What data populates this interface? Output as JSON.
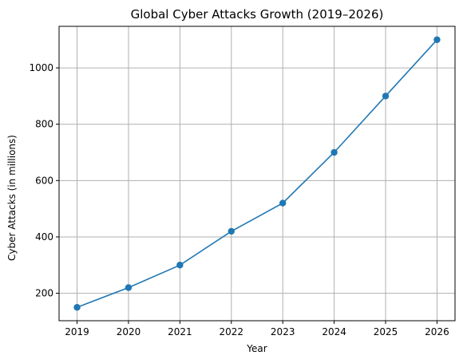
{
  "chart_data": {
    "type": "line",
    "title": "Global Cyber Attacks Growth (2019–2026)",
    "xlabel": "Year",
    "ylabel": "Cyber Attacks (in millions)",
    "x": [
      2019,
      2020,
      2021,
      2022,
      2023,
      2024,
      2025,
      2026
    ],
    "series": [
      {
        "values": [
          150,
          220,
          300,
          420,
          520,
          700,
          900,
          1100
        ],
        "color": "#1f77b4",
        "marker": "circle"
      }
    ],
    "xlim": [
      2018.65,
      2026.35
    ],
    "ylim": [
      102.5,
      1147.5
    ],
    "x_ticks": [
      "2019",
      "2020",
      "2021",
      "2022",
      "2023",
      "2024",
      "2025",
      "2026"
    ],
    "y_ticks": [
      "200",
      "400",
      "600",
      "800",
      "1000"
    ],
    "grid": true,
    "legend": "none"
  }
}
